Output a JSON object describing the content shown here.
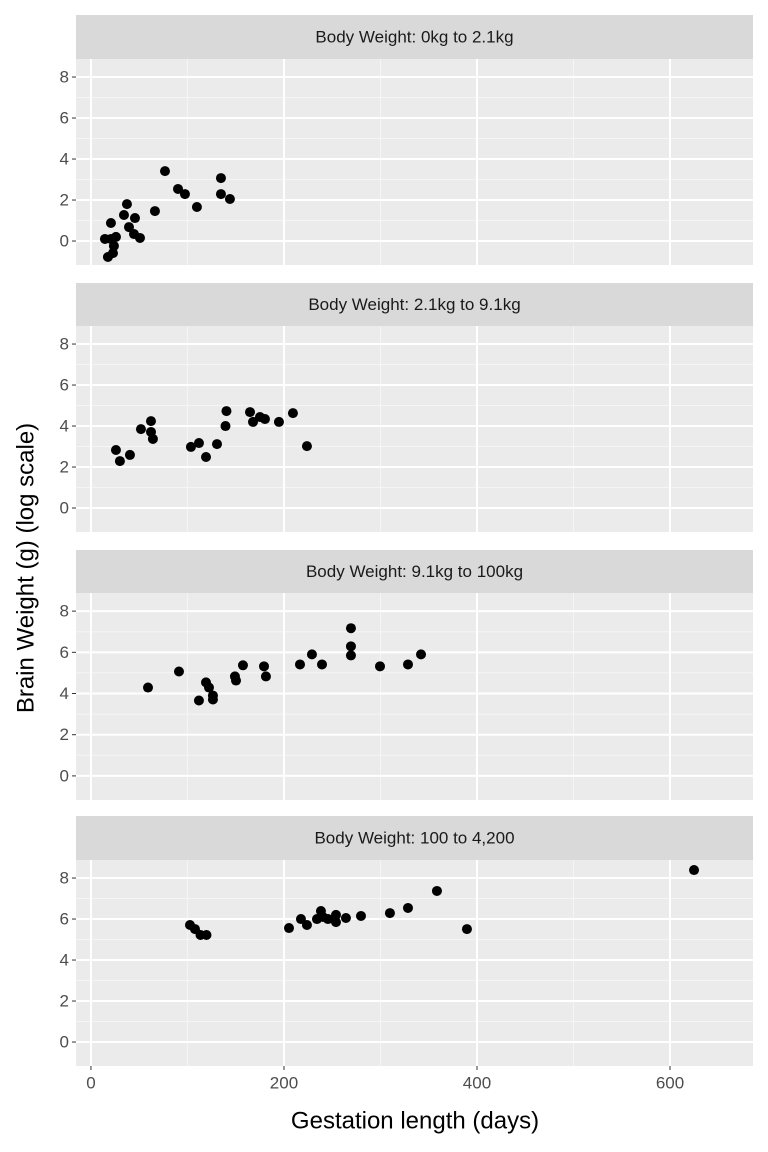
{
  "x_label": "Gestation length (days)",
  "y_label": "Brain Weight (g) (log scale)",
  "xlim": [
    -15.5,
    686
  ],
  "xticks": [
    0,
    200,
    400,
    600
  ],
  "chart_data": [
    {
      "type": "scatter",
      "title": "Body Weight: 0kg to 2.1kg",
      "color": "#000000",
      "ylim": [
        -1.17,
        8.88
      ],
      "yticks": [
        0,
        2,
        4,
        6,
        8
      ],
      "x": [
        17.6,
        22.8,
        23.8,
        20.7,
        14.5,
        25.9,
        20.7,
        34.2,
        37.3,
        39.4,
        45.6,
        44.6,
        50.8,
        66.3,
        76.7,
        90.2,
        97.4,
        109.8,
        134.7,
        134.7,
        144
      ],
      "y": [
        -0.78,
        -0.59,
        -0.24,
        0.1,
        0.1,
        0.2,
        0.88,
        1.27,
        1.8,
        0.68,
        1.12,
        0.34,
        0.15,
        1.46,
        3.41,
        2.54,
        2.29,
        1.66,
        3.07,
        2.29,
        2.05
      ]
    },
    {
      "type": "scatter",
      "title": "Body Weight: 2.1kg to 9.1kg",
      "color": "#000000",
      "ylim": [
        -1.17,
        8.88
      ],
      "yticks": [
        0,
        2,
        4,
        6,
        8
      ],
      "x": [
        25.9,
        30,
        40.4,
        51.8,
        62.2,
        62.2,
        64.2,
        103.6,
        111.9,
        119.2,
        130.6,
        139.4,
        140.4,
        164.8,
        167.9,
        175.1,
        180.3,
        194.8,
        209.3,
        223.8
      ],
      "y": [
        2.83,
        2.29,
        2.59,
        3.85,
        4.24,
        3.71,
        3.37,
        2.98,
        3.17,
        2.49,
        3.12,
        4.0,
        4.73,
        4.68,
        4.2,
        4.44,
        4.34,
        4.2,
        4.63,
        3.02
      ]
    },
    {
      "type": "scatter",
      "title": "Body Weight: 9.1kg to 100kg",
      "color": "#000000",
      "ylim": [
        -1.17,
        8.88
      ],
      "yticks": [
        0,
        2,
        4,
        6,
        8
      ],
      "x": [
        59.1,
        91.2,
        111.9,
        119.2,
        122.3,
        126.4,
        126.4,
        149.2,
        150.3,
        157.5,
        179.3,
        181.3,
        216.6,
        229,
        239.4,
        269.4,
        269.4,
        269.4,
        299.5,
        328.5,
        342
      ],
      "y": [
        4.29,
        5.07,
        3.66,
        4.54,
        4.29,
        3.9,
        3.71,
        4.83,
        4.63,
        5.37,
        5.32,
        4.83,
        5.41,
        5.9,
        5.41,
        7.17,
        6.29,
        5.85,
        5.32,
        5.41,
        5.9
      ]
    },
    {
      "type": "scatter",
      "title": "Body Weight: 100 to 4,200",
      "color": "#000000",
      "ylim": [
        -1.17,
        8.88
      ],
      "yticks": [
        0,
        2,
        4,
        6,
        8
      ],
      "x": [
        102.6,
        107.8,
        113.5,
        119.7,
        205.2,
        217.6,
        223.8,
        234.2,
        238.3,
        240.4,
        245.6,
        253.9,
        253.9,
        264.2,
        279.8,
        309.8,
        328.5,
        358.5,
        389.6,
        624.9
      ],
      "y": [
        5.71,
        5.51,
        5.22,
        5.22,
        5.56,
        6.0,
        5.71,
        6.0,
        6.39,
        6.1,
        6.0,
        6.2,
        5.85,
        6.05,
        6.15,
        6.29,
        6.54,
        7.37,
        5.51,
        8.39
      ]
    }
  ]
}
